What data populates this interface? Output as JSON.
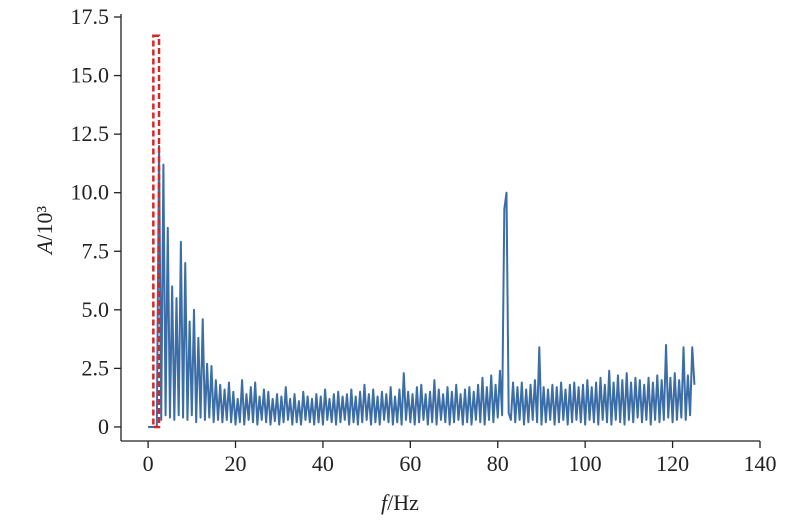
{
  "chart_data": {
    "type": "line",
    "xlabel_symbol": "f",
    "xlabel_unit": "/Hz",
    "ylabel_symbol": "A",
    "ylabel_unit": "/10³",
    "xlim": [
      -6.2,
      140
    ],
    "ylim": [
      -0.6,
      17.5
    ],
    "xticks": [
      0,
      20,
      40,
      60,
      80,
      100,
      120,
      140
    ],
    "yticks": [
      0,
      2.5,
      {
        "value": 5,
        "label": "5.0"
      },
      7.5,
      {
        "value": 10,
        "label": "10.0"
      },
      12.5,
      {
        "value": 15,
        "label": "15.0"
      },
      17.5
    ],
    "highlight": {
      "x": [
        1.2,
        2.5
      ],
      "y": [
        0,
        16.7
      ],
      "color": "#d62728"
    },
    "x": [
      0,
      0.5,
      1,
      1.5,
      2,
      2.5,
      3,
      3.5,
      4,
      4.5,
      5,
      5.5,
      6,
      6.5,
      7,
      7.5,
      8,
      8.5,
      9,
      9.5,
      10,
      10.5,
      11,
      11.5,
      12,
      12.5,
      13,
      13.5,
      14,
      14.5,
      15,
      15.5,
      16,
      16.5,
      17,
      17.5,
      18,
      18.5,
      19,
      19.5,
      20,
      20.5,
      21,
      21.5,
      22,
      22.5,
      23,
      23.5,
      24,
      24.5,
      25,
      25.5,
      26,
      26.5,
      27,
      27.5,
      28,
      28.5,
      29,
      29.5,
      30,
      30.5,
      31,
      31.5,
      32,
      32.5,
      33,
      33.5,
      34,
      34.5,
      35,
      35.5,
      36,
      36.5,
      37,
      37.5,
      38,
      38.5,
      39,
      39.5,
      40,
      40.5,
      41,
      41.5,
      42,
      42.5,
      43,
      43.5,
      44,
      44.5,
      45,
      45.5,
      46,
      46.5,
      47,
      47.5,
      48,
      48.5,
      49,
      49.5,
      50,
      50.5,
      51,
      51.5,
      52,
      52.5,
      53,
      53.5,
      54,
      54.5,
      55,
      55.5,
      56,
      56.5,
      57,
      57.5,
      58,
      58.5,
      59,
      59.5,
      60,
      60.5,
      61,
      61.5,
      62,
      62.5,
      63,
      63.5,
      64,
      64.5,
      65,
      65.5,
      66,
      66.5,
      67,
      67.5,
      68,
      68.5,
      69,
      69.5,
      70,
      70.5,
      71,
      71.5,
      72,
      72.5,
      73,
      73.5,
      74,
      74.5,
      75,
      75.5,
      76,
      76.5,
      77,
      77.5,
      78,
      78.5,
      79,
      79.5,
      80,
      80.5,
      81,
      81.5,
      82,
      82.5,
      83,
      83.5,
      84,
      84.5,
      85,
      85.5,
      86,
      86.5,
      87,
      87.5,
      88,
      88.5,
      89,
      89.5,
      90,
      90.5,
      91,
      91.5,
      92,
      92.5,
      93,
      93.5,
      94,
      94.5,
      95,
      95.5,
      96,
      96.5,
      97,
      97.5,
      98,
      98.5,
      99,
      99.5,
      100,
      100.5,
      101,
      101.5,
      102,
      102.5,
      103,
      103.5,
      104,
      104.5,
      105,
      105.5,
      106,
      106.5,
      107,
      107.5,
      108,
      108.5,
      109,
      109.5,
      110,
      110.5,
      111,
      111.5,
      112,
      112.5,
      113,
      113.5,
      114,
      114.5,
      115,
      115.5,
      116,
      116.5,
      117,
      117.5,
      118,
      118.5,
      119,
      119.5,
      120,
      120.5,
      121,
      121.5,
      122,
      122.5,
      123,
      123.5,
      124,
      124.5,
      125
    ],
    "series": [
      {
        "color": "#3b6da6",
        "values": [
          0,
          0,
          0,
          0,
          0,
          12.0,
          0.3,
          11.2,
          0.5,
          8.5,
          0.4,
          6.0,
          0.3,
          5.5,
          0.5,
          7.9,
          0.4,
          7.0,
          0.3,
          4.5,
          0.5,
          5.0,
          0.2,
          3.8,
          0.4,
          4.6,
          0.3,
          2.7,
          0.4,
          2.6,
          0.2,
          2.0,
          0.3,
          1.8,
          0.2,
          1.6,
          0.3,
          1.9,
          0.2,
          1.5,
          0.1,
          1.2,
          0.2,
          2.0,
          0.1,
          1.4,
          0.3,
          1.7,
          0.2,
          1.9,
          0.1,
          1.3,
          0.3,
          1.6,
          0.2,
          1.5,
          0.1,
          1.2,
          0.25,
          1.4,
          0.1,
          1.3,
          0.2,
          1.7,
          0.3,
          1.2,
          0.1,
          1.4,
          0.2,
          1.1,
          0.1,
          1.5,
          0.3,
          1.3,
          0.2,
          1.2,
          0.1,
          1.4,
          0.2,
          1.3,
          0.1,
          1.6,
          0.3,
          1.2,
          0.2,
          1.4,
          0.1,
          1.5,
          0.2,
          1.3,
          0.3,
          1.4,
          0.1,
          1.6,
          0.2,
          1.3,
          0.1,
          1.5,
          0.2,
          1.8,
          0.3,
          1.4,
          0.1,
          1.6,
          0.2,
          1.3,
          0.1,
          1.5,
          0.3,
          1.4,
          0.2,
          1.7,
          0.1,
          1.3,
          0.2,
          1.6,
          0.1,
          2.3,
          0.3,
          1.5,
          0.2,
          1.4,
          0.1,
          1.7,
          0.2,
          1.8,
          0.3,
          1.4,
          0.1,
          1.5,
          0.2,
          2.0,
          0.1,
          1.6,
          0.3,
          1.4,
          0.2,
          1.7,
          0.1,
          1.5,
          0.2,
          1.8,
          0.3,
          1.4,
          0.1,
          1.6,
          0.2,
          1.7,
          0.1,
          1.5,
          0.3,
          1.8,
          0.2,
          2.1,
          0.1,
          1.7,
          0.3,
          2.2,
          0.2,
          1.8,
          0.4,
          2.4,
          0.5,
          9.3,
          10.0,
          0.6,
          0.3,
          1.9,
          0.2,
          1.7,
          0.3,
          1.9,
          0.1,
          1.6,
          0.2,
          1.8,
          0.3,
          2.0,
          0.2,
          3.4,
          0.1,
          1.7,
          0.2,
          1.6,
          0.3,
          1.8,
          0.1,
          1.7,
          0.2,
          1.9,
          0.3,
          1.6,
          0.1,
          1.8,
          0.2,
          1.9,
          0.3,
          1.7,
          0.2,
          1.8,
          0.1,
          2.0,
          0.3,
          1.7,
          0.2,
          1.9,
          0.1,
          2.1,
          0.3,
          1.8,
          0.2,
          2.4,
          0.1,
          1.9,
          0.3,
          2.2,
          0.2,
          2.0,
          0.1,
          2.3,
          0.3,
          1.9,
          0.2,
          2.1,
          0.4,
          2.0,
          0.2,
          1.8,
          0.3,
          2.1,
          0.1,
          1.9,
          0.3,
          2.2,
          0.2,
          2.0,
          0.3,
          3.5,
          0.4,
          2.1,
          0.2,
          2.3,
          0.3,
          2.0,
          0.4,
          3.4,
          0.3,
          2.2,
          0.5,
          3.4,
          1.8
        ]
      }
    ]
  }
}
